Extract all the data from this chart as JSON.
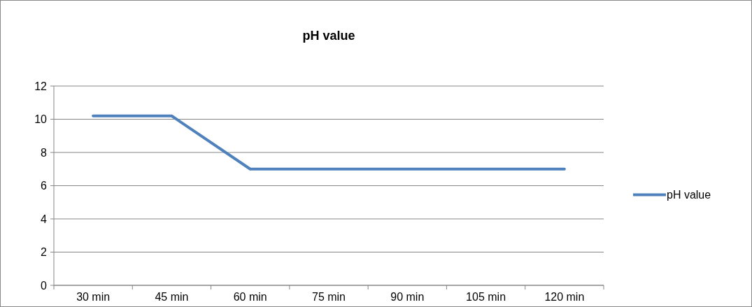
{
  "chart_data": {
    "type": "line",
    "title": "pH value",
    "categories": [
      "30 min",
      "45 min",
      "60 min",
      "75 min",
      "90 min",
      "105 min",
      "120 min"
    ],
    "series": [
      {
        "name": "pH value",
        "color": "#4f81bd",
        "values": [
          10.2,
          10.2,
          7.0,
          7.0,
          7.0,
          7.0,
          7.0
        ]
      }
    ],
    "ylim": [
      0,
      12
    ],
    "yticks": [
      0,
      2,
      4,
      6,
      8,
      10,
      12
    ],
    "grid": "y",
    "legend": "right",
    "marker": "none",
    "line_style": "solid"
  }
}
